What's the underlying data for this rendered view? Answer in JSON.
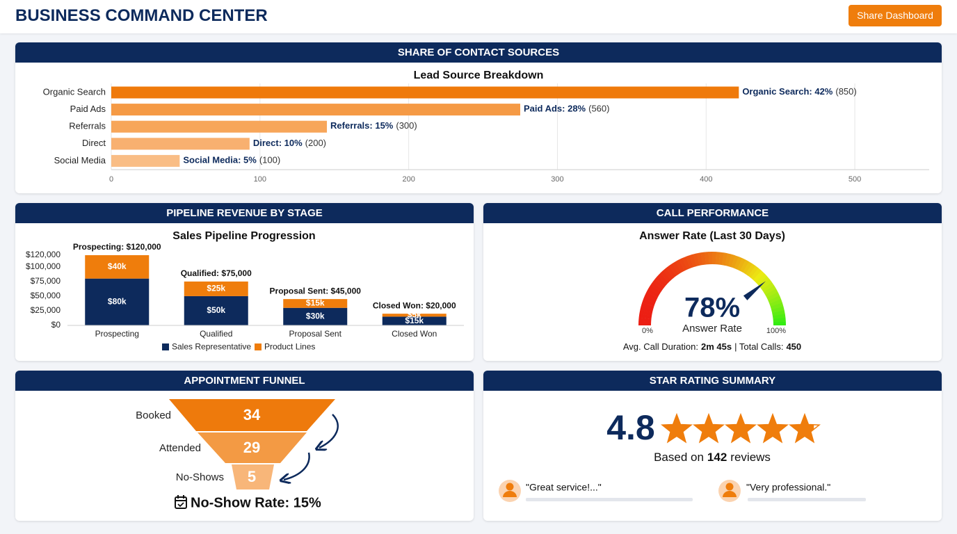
{
  "header": {
    "title": "BUSINESS COMMAND CENTER",
    "button": "Share Dashboard"
  },
  "chart_data": [
    {
      "type": "hbar",
      "panel_title": "SHARE OF CONTACT SOURCES",
      "title": "Lead Source Breakdown",
      "categories": [
        "Organic Search",
        "Paid Ads",
        "Referrals",
        "Direct",
        "Social Media"
      ],
      "values": [
        422,
        275,
        145,
        93,
        46
      ],
      "annotations": [
        {
          "label": "Organic Search: 42%",
          "count": "(850)"
        },
        {
          "label": "Paid Ads: 28%",
          "count": "(560)"
        },
        {
          "label": "Referrals: 15%",
          "count": "(300)"
        },
        {
          "label": "Direct: 10%",
          "count": "(200)"
        },
        {
          "label": "Social Media: 5%",
          "count": "(100)"
        }
      ],
      "colors": [
        "#ef7a0b",
        "#f59a45",
        "#f7a65a",
        "#f8b070",
        "#f9bd85"
      ],
      "xlim": [
        0,
        550
      ],
      "xticks": [
        0,
        100,
        200,
        300,
        400,
        500
      ],
      "grid": true
    },
    {
      "type": "stacked-bar",
      "panel_title": "PIPELINE REVENUE BY STAGE",
      "title": "Sales Pipeline Progression",
      "categories": [
        "Prospecting",
        "Qualified",
        "Proposal Sent",
        "Closed Won"
      ],
      "series": [
        {
          "name": "Sales Representative",
          "color": "#0d2a5c",
          "values": [
            80000,
            50000,
            30000,
            15000
          ],
          "value_labels": [
            "$80k",
            "$50k",
            "$30k",
            "$15k"
          ]
        },
        {
          "name": "Product Lines",
          "color": "#ef7d0c",
          "values": [
            40000,
            25000,
            15000,
            5000
          ],
          "value_labels": [
            "$40k",
            "$25k",
            "$15k",
            "$5k"
          ]
        }
      ],
      "total_labels": [
        "Prospecting: $120,000",
        "Qualified: $75,000",
        "Proposal Sent: $45,000",
        "Closed Won: $20,000"
      ],
      "ylim": [
        0,
        120000
      ],
      "yticks": [
        {
          "value": 0,
          "label": "$0"
        },
        {
          "value": 25000,
          "label": "$25,000"
        },
        {
          "value": 50000,
          "label": "$50,000"
        },
        {
          "value": 75000,
          "label": "$75,000"
        },
        {
          "value": 100000,
          "label": "$100,000"
        },
        {
          "value": 120000,
          "label": "$120,000"
        }
      ],
      "grid": false
    },
    {
      "type": "gauge",
      "panel_title": "CALL PERFORMANCE",
      "title": "Answer Rate (Last 30 Days)",
      "value": 78,
      "value_label": "78%",
      "label": "Answer Rate",
      "range": [
        0,
        100
      ],
      "min_label": "0%",
      "max_label": "100%",
      "footer": [
        "Avg. Call Duration:",
        "2m 45s",
        "| Total Calls:",
        "450"
      ]
    },
    {
      "type": "funnel",
      "panel_title": "APPOINTMENT FUNNEL",
      "categories": [
        "Booked",
        "Attended",
        "No-Shows"
      ],
      "values": [
        34,
        29,
        5
      ],
      "colors": [
        "#ee7a0c",
        "#f39a44",
        "#f8b679"
      ],
      "rate_label": "No-Show Rate: 15%"
    }
  ],
  "rating": {
    "panel_title": "STAR RATING SUMMARY",
    "score": 4.8,
    "score_label": "4.8",
    "max": 5,
    "based_on": [
      "Based on",
      "142",
      "reviews"
    ],
    "reviews": [
      "\"Great service!...\"",
      "\"Very professional.\""
    ]
  }
}
